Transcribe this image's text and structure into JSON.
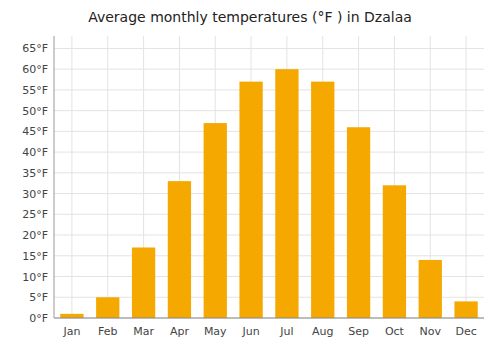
{
  "chart_data": {
    "type": "bar",
    "title": "Average monthly temperatures (°F ) in Dzalaa",
    "categories": [
      "Jan",
      "Feb",
      "Mar",
      "Apr",
      "May",
      "Jun",
      "Jul",
      "Aug",
      "Sep",
      "Oct",
      "Nov",
      "Dec"
    ],
    "values": [
      1,
      5,
      17,
      33,
      47,
      57,
      60,
      57,
      46,
      32,
      14,
      4
    ],
    "color": "#F5A800",
    "ylim": [
      0,
      68
    ],
    "yticks": [
      {
        "value": 0,
        "label": "0°F"
      },
      {
        "value": 5,
        "label": "5°F"
      },
      {
        "value": 10,
        "label": "10°F"
      },
      {
        "value": 15,
        "label": "15°F"
      },
      {
        "value": 20,
        "label": "20°F"
      },
      {
        "value": 25,
        "label": "25°F"
      },
      {
        "value": 30,
        "label": "30°F"
      },
      {
        "value": 35,
        "label": "35°F"
      },
      {
        "value": 40,
        "label": "40°F"
      },
      {
        "value": 45,
        "label": "45°F"
      },
      {
        "value": 50,
        "label": "50°F"
      },
      {
        "value": 55,
        "label": "55°F"
      },
      {
        "value": 60,
        "label": "60°F"
      },
      {
        "value": 65,
        "label": "65°F"
      }
    ],
    "grid": true
  }
}
